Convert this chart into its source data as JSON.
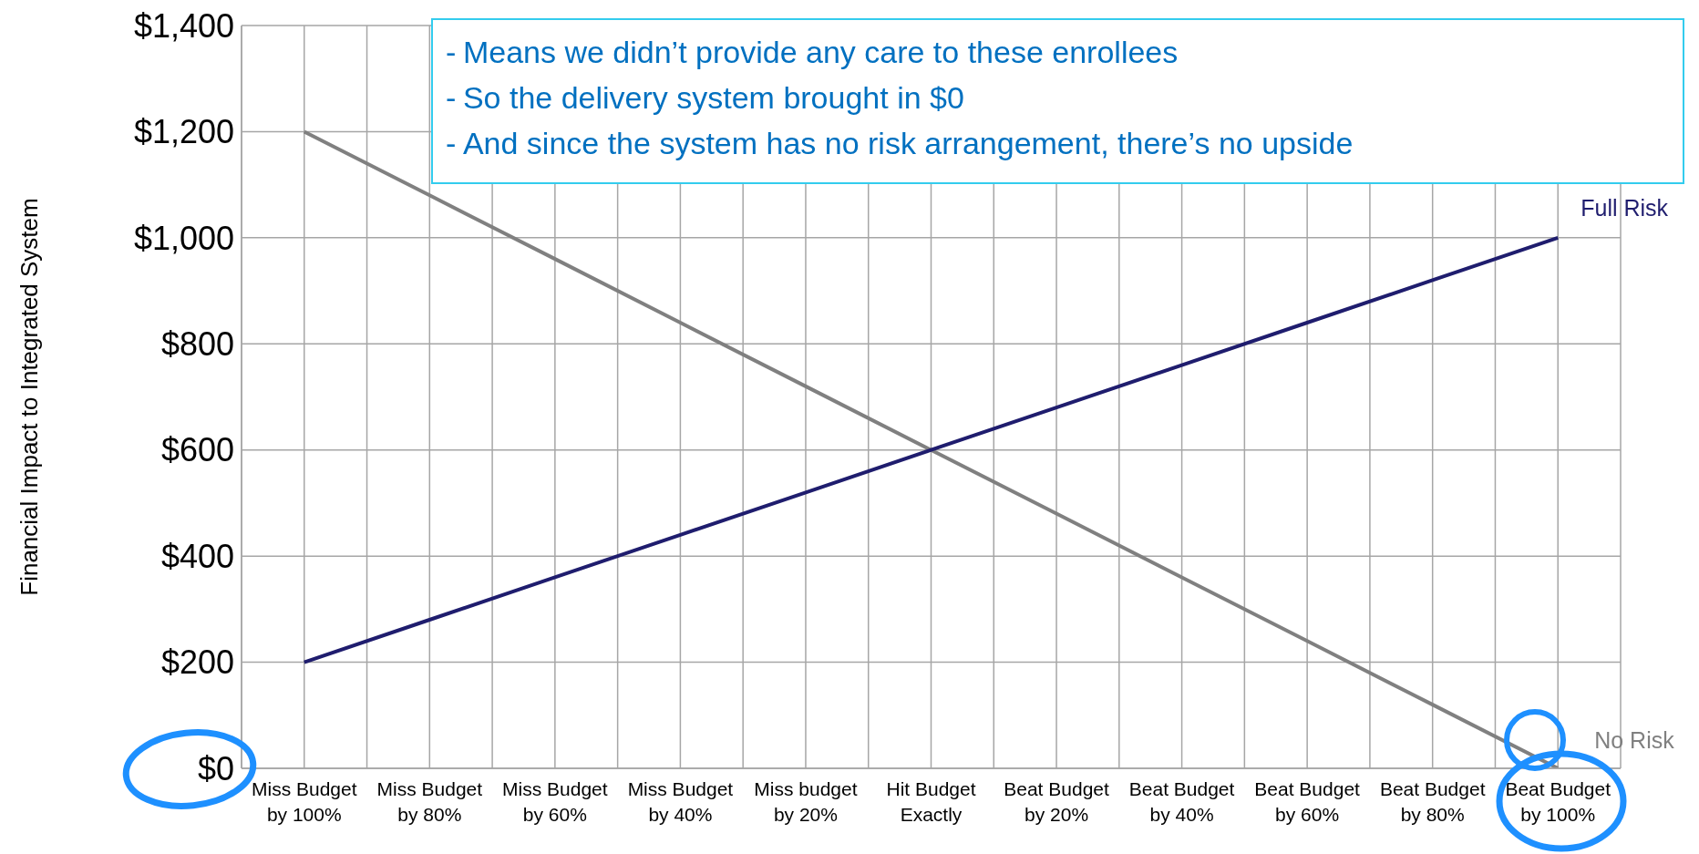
{
  "chart_data": {
    "type": "line",
    "ylabel": "Financial Impact to Integrated System",
    "categories": [
      "Miss Budget\nby 100%",
      "Miss Budget\nby 80%",
      "Miss Budget\nby 60%",
      "Miss Budget\nby 40%",
      "Miss budget\nby 20%",
      "Hit Budget\nExactly",
      "Beat Budget\nby 20%",
      "Beat Budget\nby 40%",
      "Beat Budget\nby 60%",
      "Beat Budget\nby 80%",
      "Beat Budget\nby 100%"
    ],
    "series": [
      {
        "name": "No Risk",
        "color": "#808080",
        "values": [
          1200,
          1080,
          960,
          840,
          720,
          600,
          480,
          360,
          240,
          120,
          0
        ]
      },
      {
        "name": "Full Risk",
        "color": "#1f1d6e",
        "values": [
          200,
          280,
          360,
          440,
          520,
          600,
          680,
          760,
          840,
          920,
          1000
        ]
      }
    ],
    "ylim": [
      0,
      1400
    ],
    "yticks": [
      {
        "value": 0,
        "label": "$0"
      },
      {
        "value": 200,
        "label": "$200"
      },
      {
        "value": 400,
        "label": "$400"
      },
      {
        "value": 600,
        "label": "$600"
      },
      {
        "value": 800,
        "label": "$800"
      },
      {
        "value": 1000,
        "label": "$1,000"
      },
      {
        "value": 1200,
        "label": "$1,200"
      },
      {
        "value": 1400,
        "label": "$1,400"
      }
    ],
    "grid": true,
    "marker": "none",
    "line_style": "solid",
    "annotations": [
      "-\tMeans we didn’t provide any care to these enrollees",
      "-\tSo the delivery system brought in $0",
      "-\tAnd since the system has no risk arrangement, there’s no upside"
    ]
  }
}
